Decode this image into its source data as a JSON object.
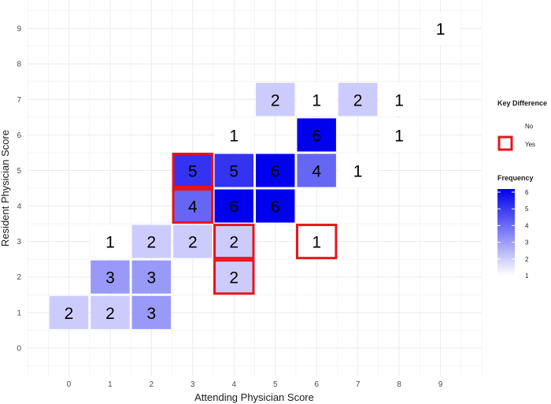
{
  "chart_data": {
    "type": "heatmap",
    "title": "",
    "xlabel": "Attending Physician Score",
    "ylabel": "Resident Physician Score",
    "x_ticks": [
      0,
      1,
      2,
      3,
      4,
      5,
      6,
      7,
      8,
      9
    ],
    "y_ticks": [
      0,
      1,
      2,
      3,
      4,
      5,
      6,
      7,
      8,
      9
    ],
    "xlim": [
      -1,
      10
    ],
    "ylim": [
      -0.8,
      9.8
    ],
    "grid": true,
    "colors": {
      "low": "#ffffff",
      "high": "#0000ee",
      "key_outline": "#e8141b",
      "grid": "#ebebeb"
    },
    "cells": [
      {
        "x": 0,
        "y": 1,
        "value": 2,
        "key_difference": false
      },
      {
        "x": 1,
        "y": 1,
        "value": 2,
        "key_difference": false
      },
      {
        "x": 2,
        "y": 1,
        "value": 3,
        "key_difference": false
      },
      {
        "x": 1,
        "y": 2,
        "value": 3,
        "key_difference": false
      },
      {
        "x": 2,
        "y": 2,
        "value": 3,
        "key_difference": false
      },
      {
        "x": 4,
        "y": 2,
        "value": 2,
        "key_difference": true
      },
      {
        "x": 1,
        "y": 3,
        "value": 1,
        "key_difference": false
      },
      {
        "x": 2,
        "y": 3,
        "value": 2,
        "key_difference": false
      },
      {
        "x": 3,
        "y": 3,
        "value": 2,
        "key_difference": false
      },
      {
        "x": 4,
        "y": 3,
        "value": 2,
        "key_difference": true
      },
      {
        "x": 6,
        "y": 3,
        "value": 1,
        "key_difference": true
      },
      {
        "x": 3,
        "y": 4,
        "value": 4,
        "key_difference": true
      },
      {
        "x": 4,
        "y": 4,
        "value": 6,
        "key_difference": false
      },
      {
        "x": 5,
        "y": 4,
        "value": 6,
        "key_difference": false
      },
      {
        "x": 3,
        "y": 5,
        "value": 5,
        "key_difference": true
      },
      {
        "x": 4,
        "y": 5,
        "value": 5,
        "key_difference": false
      },
      {
        "x": 5,
        "y": 5,
        "value": 6,
        "key_difference": false
      },
      {
        "x": 6,
        "y": 5,
        "value": 4,
        "key_difference": false
      },
      {
        "x": 7,
        "y": 5,
        "value": 1,
        "key_difference": false
      },
      {
        "x": 4,
        "y": 6,
        "value": 1,
        "key_difference": false
      },
      {
        "x": 6,
        "y": 6,
        "value": 6,
        "key_difference": false
      },
      {
        "x": 8,
        "y": 6,
        "value": 1,
        "key_difference": false
      },
      {
        "x": 5,
        "y": 7,
        "value": 2,
        "key_difference": false
      },
      {
        "x": 6,
        "y": 7,
        "value": 1,
        "key_difference": false
      },
      {
        "x": 7,
        "y": 7,
        "value": 2,
        "key_difference": false
      },
      {
        "x": 8,
        "y": 7,
        "value": 1,
        "key_difference": false
      },
      {
        "x": 9,
        "y": 9,
        "value": 1,
        "key_difference": false
      }
    ],
    "legend_key_difference": {
      "title": "Key Difference",
      "entries": [
        "No",
        "Yes"
      ]
    },
    "legend_frequency": {
      "title": "Frequency",
      "range": [
        1,
        6
      ],
      "ticks": [
        1,
        2,
        3,
        4,
        5,
        6
      ]
    }
  }
}
